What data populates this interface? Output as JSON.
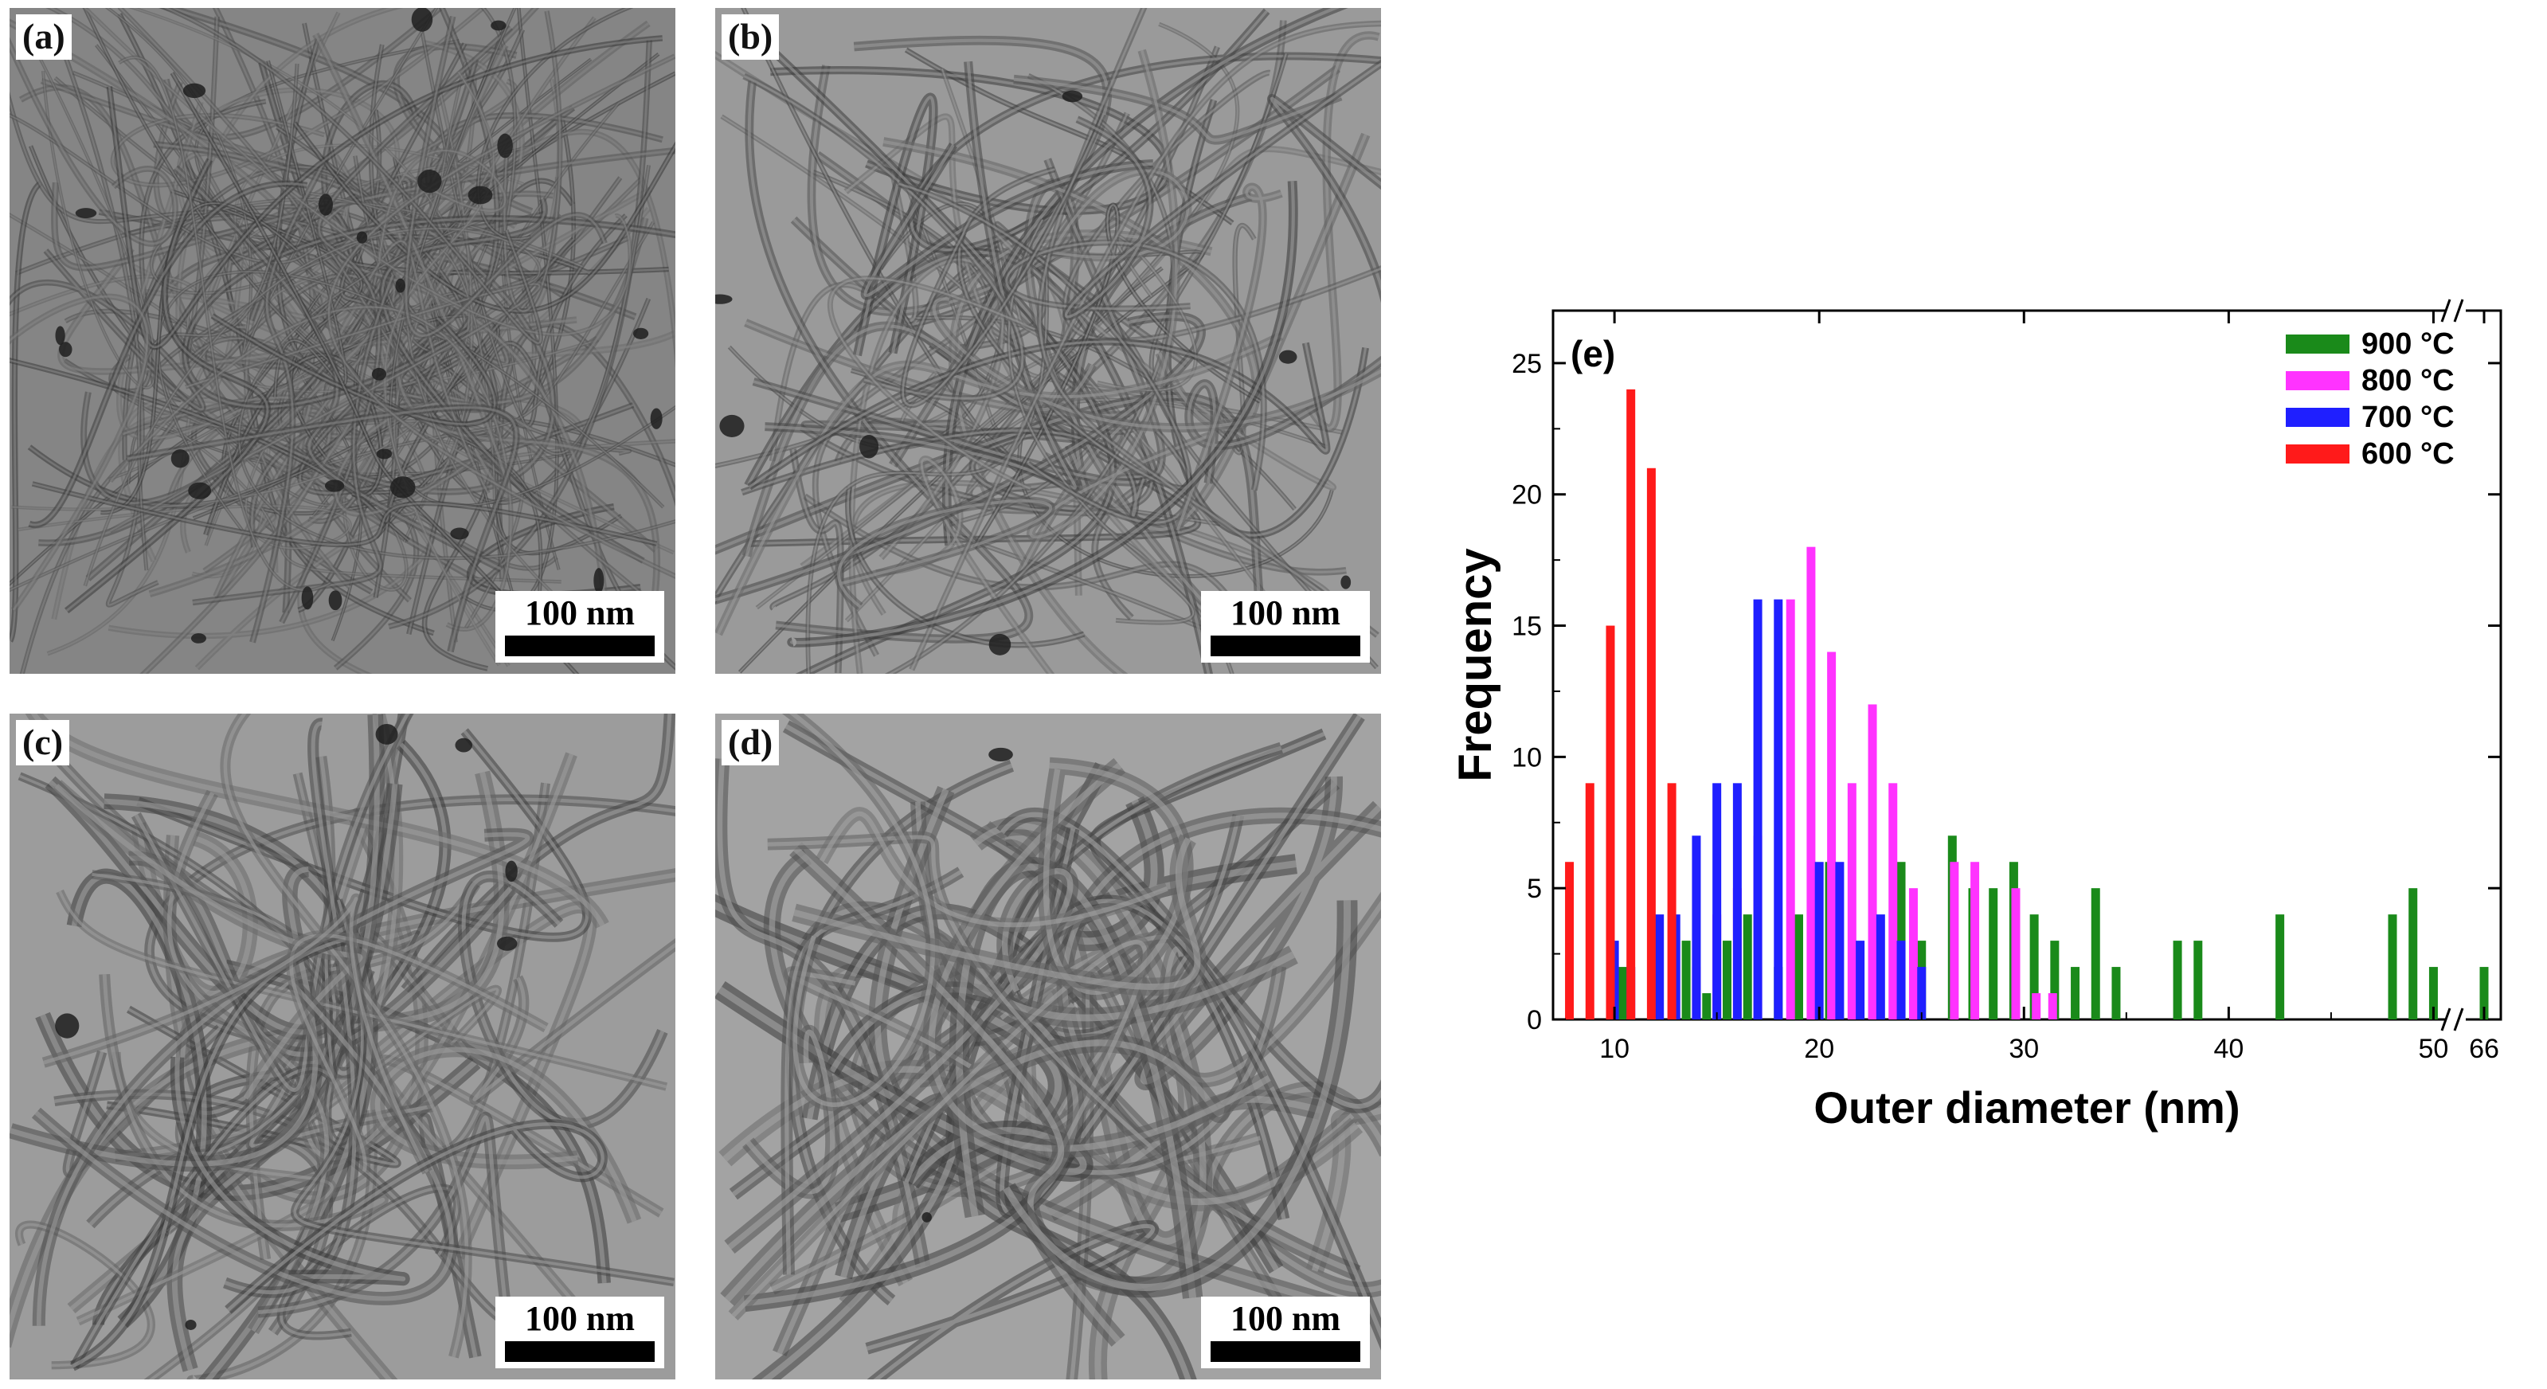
{
  "panels": [
    {
      "label": "(a)",
      "scale_bar": "100 nm"
    },
    {
      "label": "(b)",
      "scale_bar": "100 nm"
    },
    {
      "label": "(c)",
      "scale_bar": "100 nm"
    },
    {
      "label": "(d)",
      "scale_bar": "100 nm"
    }
  ],
  "colors": {
    "900": "#1a8a1a",
    "800": "#ff33ff",
    "700": "#1f1fff",
    "600": "#ff1a1a"
  },
  "chart_data": {
    "type": "bar",
    "panel_label": "(e)",
    "xlabel": "Outer diameter (nm)",
    "ylabel": "Frequency",
    "xlim": [
      7,
      67
    ],
    "ylim": [
      0,
      27
    ],
    "x_ticks": [
      "10",
      "20",
      "30",
      "40",
      "50",
      "66"
    ],
    "x_break": [
      50,
      65
    ],
    "y_ticks": [
      0,
      5,
      10,
      15,
      20,
      25
    ],
    "legend_position": "top-right",
    "series": [
      {
        "name": "900 °C",
        "color": "#1a8a1a",
        "points": [
          [
            10.4,
            2
          ],
          [
            13.5,
            3
          ],
          [
            14.5,
            1
          ],
          [
            15.5,
            3
          ],
          [
            16.5,
            4
          ],
          [
            18,
            2
          ],
          [
            19,
            4
          ],
          [
            20.5,
            6
          ],
          [
            24,
            6
          ],
          [
            25,
            3
          ],
          [
            26.5,
            7
          ],
          [
            27.5,
            5
          ],
          [
            28.5,
            5
          ],
          [
            29.5,
            6
          ],
          [
            30.5,
            4
          ],
          [
            31.5,
            3
          ],
          [
            32.5,
            2
          ],
          [
            33.5,
            5
          ],
          [
            34.5,
            2
          ],
          [
            37.5,
            3
          ],
          [
            38.5,
            3
          ],
          [
            42.5,
            4
          ],
          [
            48,
            4
          ],
          [
            49,
            5
          ],
          [
            50,
            2
          ],
          [
            66,
            2
          ]
        ]
      },
      {
        "name": "800 °C",
        "color": "#ff33ff",
        "points": [
          [
            14,
            2
          ],
          [
            15,
            4
          ],
          [
            16,
            5
          ],
          [
            17,
            7
          ],
          [
            18.6,
            16
          ],
          [
            19.6,
            18
          ],
          [
            20.6,
            14
          ],
          [
            21.6,
            9
          ],
          [
            22.6,
            12
          ],
          [
            23.6,
            9
          ],
          [
            24.6,
            5
          ],
          [
            26.6,
            6
          ],
          [
            27.6,
            6
          ],
          [
            29.6,
            5
          ],
          [
            30.6,
            1
          ],
          [
            31.4,
            1
          ]
        ]
      },
      {
        "name": "700 °C",
        "color": "#1f1fff",
        "points": [
          [
            10,
            3
          ],
          [
            10.8,
            2
          ],
          [
            12.2,
            4
          ],
          [
            13,
            4
          ],
          [
            14,
            7
          ],
          [
            15,
            9
          ],
          [
            16,
            9
          ],
          [
            17,
            16
          ],
          [
            18,
            16
          ],
          [
            20,
            6
          ],
          [
            21,
            6
          ],
          [
            22,
            3
          ],
          [
            23,
            4
          ],
          [
            24,
            3
          ],
          [
            25,
            2
          ]
        ]
      },
      {
        "name": "600 °C",
        "color": "#ff1a1a",
        "points": [
          [
            7.8,
            6
          ],
          [
            8.8,
            9
          ],
          [
            9.8,
            15
          ],
          [
            10.8,
            24
          ],
          [
            11.8,
            21
          ],
          [
            12.8,
            9
          ]
        ]
      }
    ]
  }
}
